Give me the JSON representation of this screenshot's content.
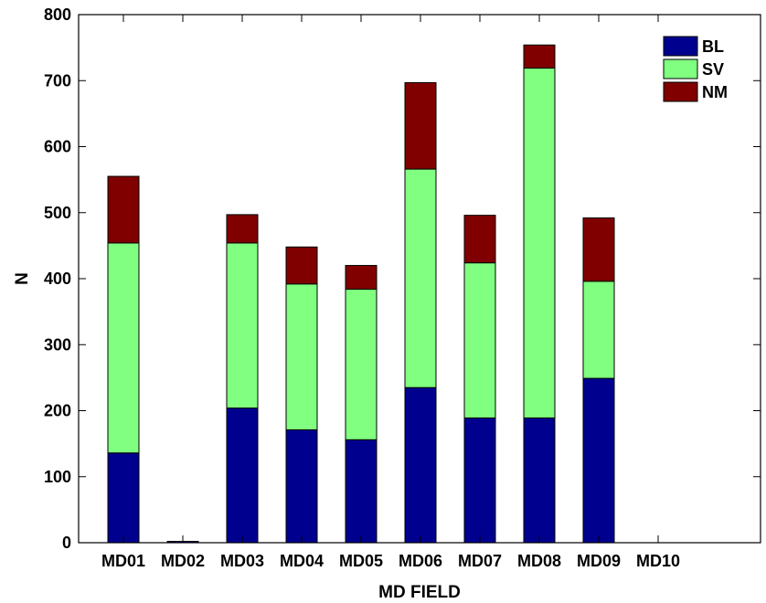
{
  "chart_data": {
    "type": "bar",
    "stacked": true,
    "title": "",
    "xlabel": "MD FIELD",
    "ylabel": "N",
    "ylim": [
      0,
      800
    ],
    "yticks": [
      0,
      100,
      200,
      300,
      400,
      500,
      600,
      700,
      800
    ],
    "grid": false,
    "legend_position": "top-right",
    "categories": [
      "MD01",
      "MD02",
      "MD03",
      "MD04",
      "MD05",
      "MD06",
      "MD07",
      "MD08",
      "MD09",
      "MD10"
    ],
    "series": [
      {
        "name": "BL",
        "color": "#00008f",
        "values": [
          136,
          2,
          204,
          171,
          156,
          235,
          189,
          189,
          249,
          0
        ]
      },
      {
        "name": "SV",
        "color": "#80ff80",
        "values": [
          318,
          0,
          250,
          221,
          228,
          331,
          235,
          530,
          147,
          0
        ]
      },
      {
        "name": "NM",
        "color": "#800000",
        "values": [
          101,
          0,
          43,
          56,
          36,
          131,
          72,
          35,
          96,
          0
        ]
      }
    ]
  }
}
